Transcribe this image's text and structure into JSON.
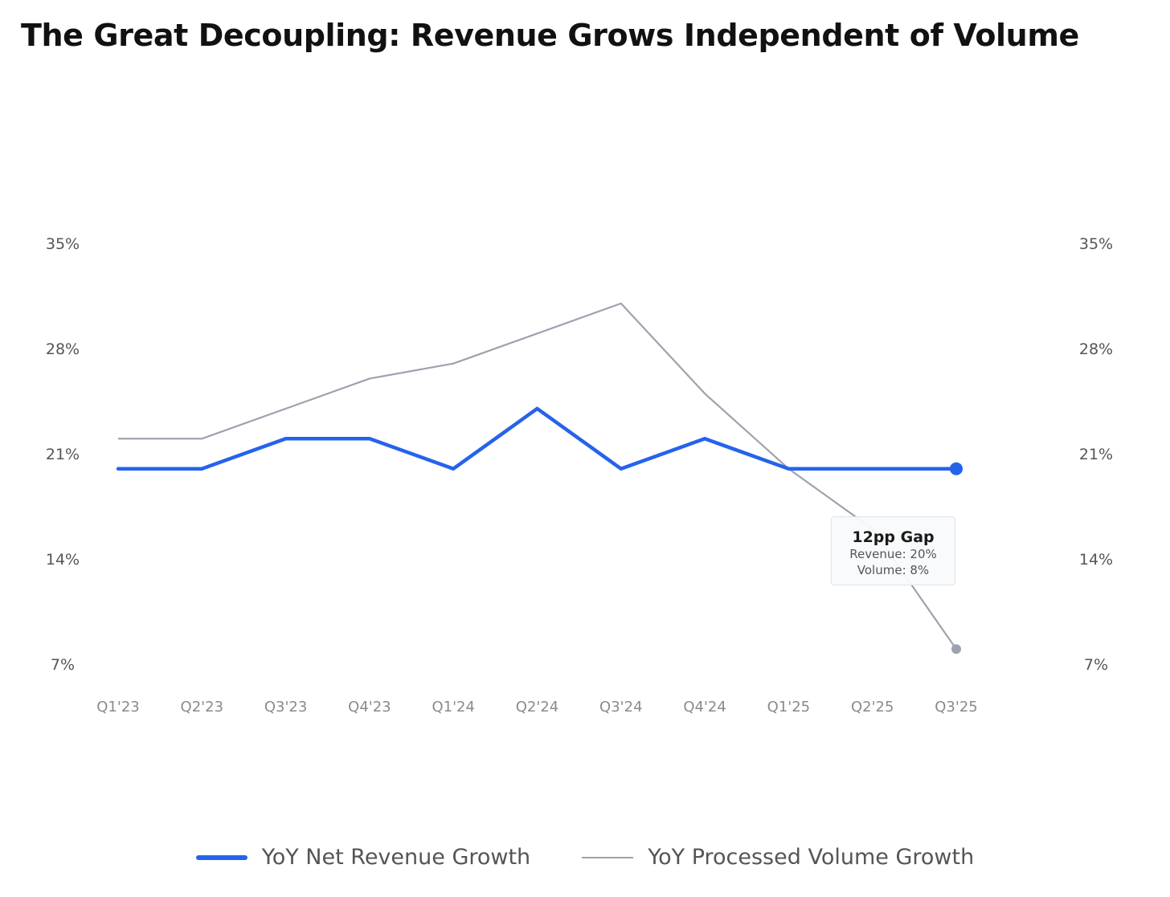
{
  "title": "The Great Decoupling: Revenue Grows Independent of Volume",
  "colors": {
    "revenue": "#2563eb",
    "volume": "#9ca3af",
    "background": "#ffffff"
  },
  "annotation": {
    "title": "12pp Gap",
    "revenue_text": "Revenue: 20%",
    "volume_text": "Volume: 8%"
  },
  "chart_data": {
    "type": "line",
    "title": "The Great Decoupling: Revenue Grows Independent of Volume",
    "categories": [
      "Q1'23",
      "Q2'23",
      "Q3'23",
      "Q4'23",
      "Q1'24",
      "Q2'24",
      "Q3'24",
      "Q4'24",
      "Q1'25",
      "Q2'25",
      "Q3'25"
    ],
    "series": [
      {
        "name": "YoY Net Revenue Growth",
        "axis": "left",
        "values": [
          20,
          20,
          22,
          22,
          20,
          24,
          20,
          22,
          20,
          20,
          20
        ],
        "color": "#2563eb"
      },
      {
        "name": "YoY Processed Volume Growth",
        "axis": "right",
        "values": [
          22,
          22,
          24,
          26,
          27,
          29,
          31,
          25,
          20,
          16,
          8
        ],
        "color": "#9ca3af"
      }
    ],
    "y_left": {
      "ticks": [
        "35%",
        "28%",
        "21%",
        "14%",
        "7%"
      ],
      "tick_values": [
        35,
        28,
        21,
        14,
        7
      ],
      "range": [
        7,
        35
      ]
    },
    "y_right": {
      "ticks": [
        "35%",
        "28%",
        "21%",
        "14%",
        "7%"
      ],
      "tick_values": [
        35,
        28,
        21,
        14,
        7
      ],
      "range": [
        7,
        35
      ]
    },
    "grid": false,
    "legend": "bottom-center",
    "annotation_note": "12pp Gap between revenue (20%) and volume (8%) at Q3'25"
  }
}
